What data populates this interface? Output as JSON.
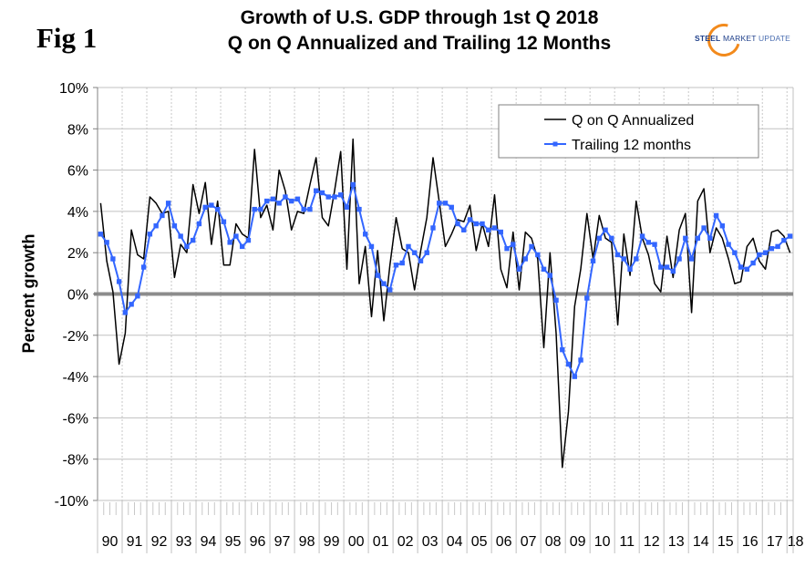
{
  "figure_label": "Fig 1",
  "logo": {
    "word1": "STEEL",
    "word2": "MARKET",
    "word3": "UPDATE",
    "accent_color": "#f28a1c",
    "brand_color": "#1e3f8a"
  },
  "chart_data": {
    "type": "line",
    "title": "Growth of U.S. GDP through 1st Q 2018",
    "subtitle": "Q on Q Annualized and Trailing 12 Months",
    "xlabel": "",
    "ylabel": "Percent growth",
    "ylim": [
      -10,
      10
    ],
    "y_ticks": [
      10,
      8,
      6,
      4,
      2,
      0,
      -2,
      -4,
      -6,
      -8,
      -10
    ],
    "y_tick_labels": [
      "10%",
      "8%",
      "6%",
      "4%",
      "2%",
      "0%",
      "-2%",
      "-4%",
      "-6%",
      "-8%",
      "-10%"
    ],
    "x_tick_labels": [
      "90",
      "91",
      "92",
      "93",
      "94",
      "95",
      "96",
      "97",
      "98",
      "99",
      "00",
      "01",
      "02",
      "03",
      "04",
      "05",
      "06",
      "07",
      "08",
      "09",
      "10",
      "11",
      "12",
      "13",
      "14",
      "15",
      "16",
      "17",
      "18"
    ],
    "x_start": "1990 Q1",
    "x_end": "2018 Q1",
    "periods_per_year": 4,
    "grid": true,
    "legend_position": "top-right",
    "zero_line": true,
    "series": [
      {
        "name": "Q on Q Annualized",
        "color": "#000000",
        "marker": "none",
        "values": [
          4.4,
          1.6,
          0.1,
          -3.4,
          -1.9,
          3.1,
          1.9,
          1.7,
          4.7,
          4.4,
          3.9,
          4.0,
          0.8,
          2.4,
          2.0,
          5.3,
          3.9,
          5.4,
          2.4,
          4.5,
          1.4,
          1.4,
          3.4,
          2.9,
          2.7,
          7.0,
          3.7,
          4.3,
          3.1,
          6.0,
          5.0,
          3.1,
          4.0,
          3.9,
          5.3,
          6.6,
          3.7,
          3.3,
          5.0,
          6.9,
          1.2,
          7.5,
          0.5,
          2.3,
          -1.1,
          2.1,
          -1.3,
          1.4,
          3.7,
          2.2,
          2.0,
          0.2,
          2.1,
          3.7,
          6.6,
          4.5,
          2.3,
          2.9,
          3.6,
          3.5,
          4.3,
          2.1,
          3.4,
          2.3,
          4.8,
          1.2,
          0.3,
          3.0,
          0.2,
          3.0,
          2.7,
          1.7,
          -2.6,
          2.0,
          -1.9,
          -8.4,
          -5.7,
          -0.6,
          1.2,
          3.9,
          1.7,
          3.8,
          2.7,
          2.5,
          -1.5,
          2.9,
          0.9,
          4.5,
          2.7,
          1.9,
          0.5,
          0.1,
          2.8,
          0.8,
          3.1,
          3.9,
          -0.9,
          4.5,
          5.1,
          2.0,
          3.2,
          2.7,
          1.7,
          0.5,
          0.6,
          2.3,
          2.7,
          1.6,
          1.2,
          3.0,
          3.1,
          2.8,
          2.0
        ]
      },
      {
        "name": "Trailing 12 months",
        "color": "#3366ff",
        "marker": "square",
        "values": [
          2.9,
          2.5,
          1.7,
          0.6,
          -0.9,
          -0.5,
          -0.1,
          1.3,
          2.9,
          3.3,
          3.8,
          4.4,
          3.3,
          2.8,
          2.3,
          2.6,
          3.4,
          4.2,
          4.3,
          4.1,
          3.5,
          2.5,
          2.8,
          2.3,
          2.6,
          4.1,
          4.1,
          4.5,
          4.6,
          4.4,
          4.7,
          4.5,
          4.6,
          4.1,
          4.1,
          5.0,
          4.9,
          4.7,
          4.7,
          4.8,
          4.2,
          5.3,
          4.1,
          2.9,
          2.3,
          0.9,
          0.5,
          0.2,
          1.4,
          1.5,
          2.3,
          2.0,
          1.6,
          2.0,
          3.2,
          4.4,
          4.4,
          4.2,
          3.4,
          3.1,
          3.6,
          3.4,
          3.4,
          3.1,
          3.2,
          3.0,
          2.2,
          2.4,
          1.2,
          1.7,
          2.3,
          1.9,
          1.2,
          0.9,
          -0.3,
          -2.7,
          -3.4,
          -4.0,
          -3.2,
          -0.2,
          1.6,
          2.7,
          3.1,
          2.7,
          1.9,
          1.7,
          1.2,
          1.7,
          2.8,
          2.5,
          2.4,
          1.3,
          1.3,
          1.1,
          1.7,
          2.7,
          1.7,
          2.7,
          3.2,
          2.7,
          3.8,
          3.3,
          2.4,
          2.0,
          1.3,
          1.2,
          1.5,
          1.9,
          2.0,
          2.2,
          2.3,
          2.6,
          2.8
        ]
      }
    ]
  }
}
